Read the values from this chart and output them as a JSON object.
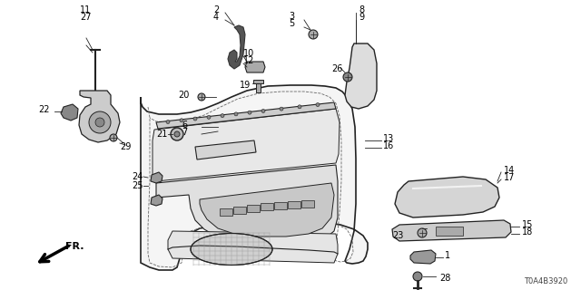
{
  "bg_color": "#ffffff",
  "diagram_code": "T0A4B3920",
  "line_color": "#222222",
  "fill_light": "#dddddd",
  "fill_mid": "#bbbbbb",
  "fill_dark": "#888888"
}
